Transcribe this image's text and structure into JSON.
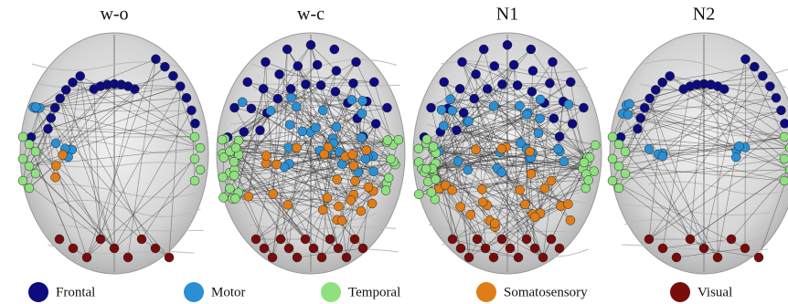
{
  "panels": [
    {
      "title": "w-o"
    },
    {
      "title": "w-c"
    },
    {
      "title": "N1"
    },
    {
      "title": "N2"
    }
  ],
  "legend": [
    {
      "name": "Frontal",
      "color": "#0c0c80"
    },
    {
      "name": "Motor",
      "color": "#2a8fd4"
    },
    {
      "name": "Temporal",
      "color": "#8fe07f"
    },
    {
      "name": "Somatosensory",
      "color": "#e07d18"
    },
    {
      "name": "Visual",
      "color": "#780c0c"
    }
  ]
}
